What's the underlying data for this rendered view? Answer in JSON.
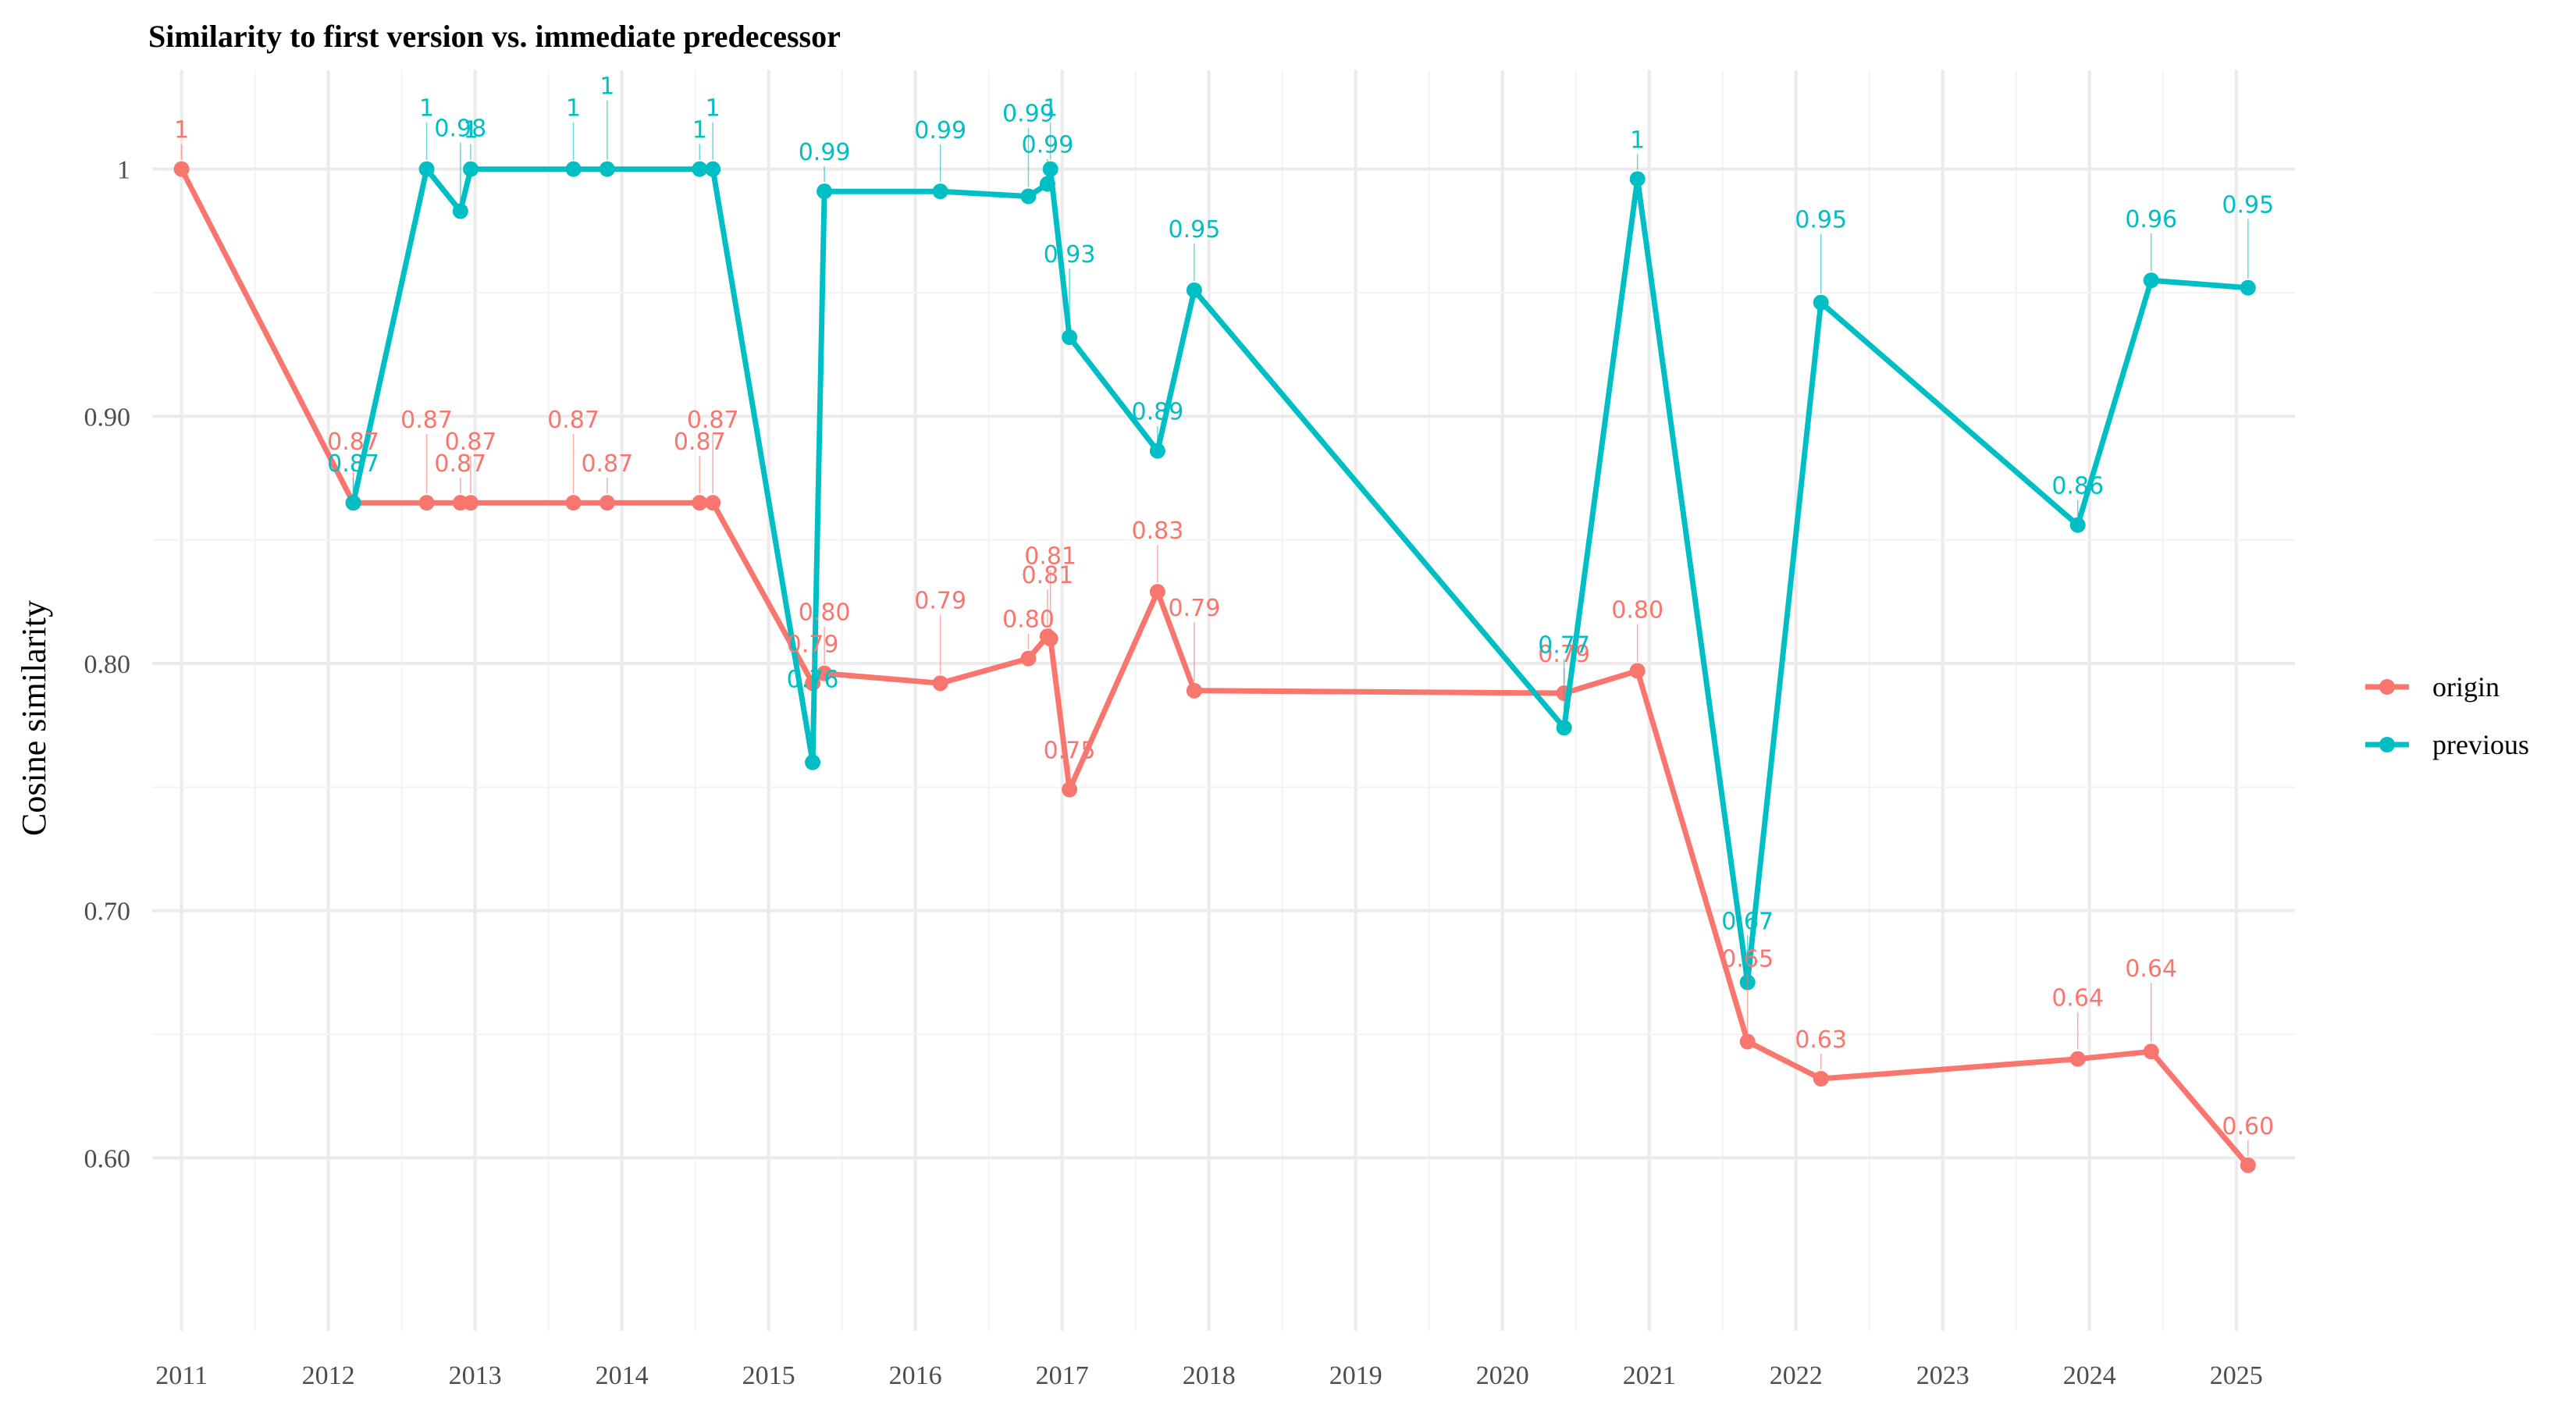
{
  "chart_data": {
    "type": "line",
    "title": "Similarity to first version vs. immediate predecessor",
    "xlabel": "",
    "ylabel": "Cosine similarity",
    "x_range": [
      2010.8,
      2025.4
    ],
    "ylim": [
      0.53,
      1.04
    ],
    "x_ticks": [
      2011,
      2012,
      2013,
      2014,
      2015,
      2016,
      2017,
      2018,
      2019,
      2020,
      2021,
      2022,
      2023,
      2024,
      2025
    ],
    "x_tick_labels": [
      "2011",
      "2012",
      "2013",
      "2014",
      "2015",
      "2016",
      "2017",
      "2018",
      "2019",
      "2020",
      "2021",
      "2022",
      "2023",
      "2024",
      "2025"
    ],
    "y_ticks": [
      0.6,
      0.7,
      0.8,
      0.9,
      1.0
    ],
    "y_tick_labels": [
      "0.60",
      "0.70",
      "0.80",
      "0.90",
      "1"
    ],
    "grid": true,
    "legend_position": "right",
    "series": [
      {
        "name": "origin",
        "color": "#F8766D",
        "points": [
          {
            "x": 2011.0,
            "y": 1.0,
            "label": "1"
          },
          {
            "x": 2012.17,
            "y": 0.865,
            "label": "0.87"
          },
          {
            "x": 2012.67,
            "y": 0.865,
            "label": "0.87"
          },
          {
            "x": 2012.9,
            "y": 0.865,
            "label": "0.87"
          },
          {
            "x": 2012.97,
            "y": 0.865,
            "label": "0.87"
          },
          {
            "x": 2013.67,
            "y": 0.865,
            "label": "0.87"
          },
          {
            "x": 2013.9,
            "y": 0.865,
            "label": "0.87"
          },
          {
            "x": 2014.53,
            "y": 0.865,
            "label": "0.87"
          },
          {
            "x": 2014.62,
            "y": 0.865,
            "label": "0.87"
          },
          {
            "x": 2015.3,
            "y": 0.792,
            "label": "0.79"
          },
          {
            "x": 2015.38,
            "y": 0.796,
            "label": "0.80"
          },
          {
            "x": 2016.17,
            "y": 0.792,
            "label": "0.79"
          },
          {
            "x": 2016.77,
            "y": 0.802,
            "label": "0.80"
          },
          {
            "x": 2016.9,
            "y": 0.811,
            "label": "0.81"
          },
          {
            "x": 2016.92,
            "y": 0.81,
            "label": "0.81"
          },
          {
            "x": 2017.05,
            "y": 0.749,
            "label": "0.75"
          },
          {
            "x": 2017.65,
            "y": 0.829,
            "label": "0.83"
          },
          {
            "x": 2017.9,
            "y": 0.789,
            "label": "0.79"
          },
          {
            "x": 2020.42,
            "y": 0.788,
            "label": "0.79"
          },
          {
            "x": 2020.92,
            "y": 0.797,
            "label": "0.80"
          },
          {
            "x": 2021.67,
            "y": 0.647,
            "label": "0.65"
          },
          {
            "x": 2022.17,
            "y": 0.632,
            "label": "0.63"
          },
          {
            "x": 2023.92,
            "y": 0.64,
            "label": "0.64"
          },
          {
            "x": 2024.42,
            "y": 0.643,
            "label": "0.64"
          },
          {
            "x": 2025.08,
            "y": 0.597,
            "label": "0.60"
          }
        ]
      },
      {
        "name": "previous",
        "color": "#00BFC4",
        "points": [
          {
            "x": 2012.17,
            "y": 0.865,
            "label": "0.87"
          },
          {
            "x": 2012.67,
            "y": 1.0,
            "label": "1"
          },
          {
            "x": 2012.9,
            "y": 0.983,
            "label": "0.98"
          },
          {
            "x": 2012.97,
            "y": 1.0,
            "label": "1"
          },
          {
            "x": 2013.67,
            "y": 1.0,
            "label": "1"
          },
          {
            "x": 2013.9,
            "y": 1.0,
            "label": "1"
          },
          {
            "x": 2014.53,
            "y": 1.0,
            "label": "1"
          },
          {
            "x": 2014.62,
            "y": 1.0,
            "label": "1"
          },
          {
            "x": 2015.3,
            "y": 0.76,
            "label": "0.76"
          },
          {
            "x": 2015.38,
            "y": 0.991,
            "label": "0.99"
          },
          {
            "x": 2016.17,
            "y": 0.991,
            "label": "0.99"
          },
          {
            "x": 2016.77,
            "y": 0.989,
            "label": "0.99"
          },
          {
            "x": 2016.9,
            "y": 0.994,
            "label": "0.99"
          },
          {
            "x": 2016.92,
            "y": 1.0,
            "label": "1"
          },
          {
            "x": 2017.05,
            "y": 0.932,
            "label": "0.93"
          },
          {
            "x": 2017.65,
            "y": 0.886,
            "label": "0.89"
          },
          {
            "x": 2017.9,
            "y": 0.951,
            "label": "0.95"
          },
          {
            "x": 2020.42,
            "y": 0.774,
            "label": "0.77"
          },
          {
            "x": 2020.92,
            "y": 0.996,
            "label": "1"
          },
          {
            "x": 2021.67,
            "y": 0.671,
            "label": "0.67"
          },
          {
            "x": 2022.17,
            "y": 0.946,
            "label": "0.95"
          },
          {
            "x": 2023.92,
            "y": 0.856,
            "label": "0.86"
          },
          {
            "x": 2024.42,
            "y": 0.955,
            "label": "0.96"
          },
          {
            "x": 2025.08,
            "y": 0.952,
            "label": "0.95"
          }
        ]
      }
    ]
  }
}
